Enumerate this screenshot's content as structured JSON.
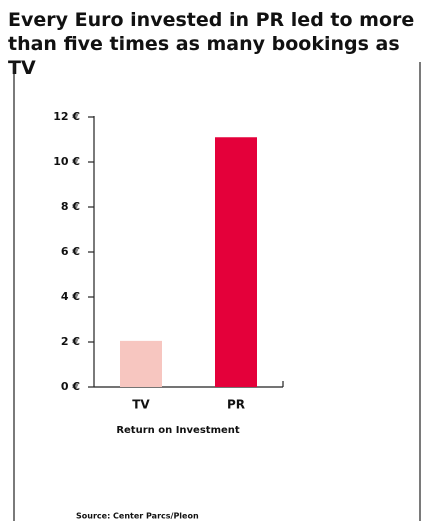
{
  "chart_data": {
    "type": "bar",
    "title": "Every Euro invested in PR led to more than five times as many bookings as TV",
    "categories": [
      "TV",
      "PR"
    ],
    "values": [
      2.05,
      11.1
    ],
    "colors": [
      "#f7c6c0",
      "#e4003a"
    ],
    "xlabel": "Return on Investment",
    "ylim": [
      0,
      12
    ],
    "yticks": [
      {
        "value": 0,
        "label": "0 €"
      },
      {
        "value": 2,
        "label": "2 €"
      },
      {
        "value": 4,
        "label": "4 €"
      },
      {
        "value": 6,
        "label": "6 €"
      },
      {
        "value": 8,
        "label": "8 €"
      },
      {
        "value": 10,
        "label": "10 €"
      },
      {
        "value": 12,
        "label": "12 €"
      }
    ],
    "source": "Source: Center Parcs/Pleon"
  }
}
